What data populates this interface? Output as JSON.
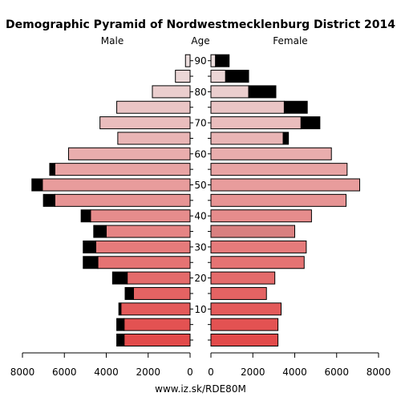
{
  "chart_data": {
    "type": "bar",
    "title": "Demographic Pyramid of Nordwestmecklenburg District 2014",
    "male_label": "Male",
    "age_label": "Age",
    "female_label": "Female",
    "footer": "www.iz.sk/RDE80M",
    "x_ticks": [
      8000,
      6000,
      4000,
      2000,
      0
    ],
    "x_ticks_female": [
      0,
      2000,
      4000,
      6000,
      8000
    ],
    "xlim": [
      0,
      8000
    ],
    "age_ticks": [
      10,
      20,
      30,
      40,
      50,
      60,
      70,
      80,
      90
    ],
    "age_groups": [
      "0-4",
      "5-9",
      "10-14",
      "15-19",
      "20-24",
      "25-29",
      "30-34",
      "35-39",
      "40-44",
      "45-49",
      "50-54",
      "55-59",
      "60-64",
      "65-69",
      "70-74",
      "75-79",
      "80-84",
      "85-89",
      "90+"
    ],
    "series": [
      {
        "name": "Male",
        "values": [
          3150,
          3150,
          3300,
          2700,
          3000,
          4400,
          4500,
          4000,
          4750,
          6450,
          7050,
          6450,
          5800,
          3450,
          4300,
          3500,
          1800,
          700,
          220
        ],
        "surplus": [
          350,
          350,
          100,
          400,
          700,
          700,
          600,
          600,
          450,
          550,
          500,
          250,
          0,
          0,
          0,
          0,
          0,
          0,
          0
        ]
      },
      {
        "name": "Female",
        "values": [
          3200,
          3200,
          3350,
          2650,
          3050,
          4450,
          4550,
          4000,
          4800,
          6450,
          7100,
          6500,
          5750,
          3450,
          4300,
          3500,
          1800,
          700,
          220
        ],
        "surplus": [
          0,
          0,
          0,
          0,
          0,
          0,
          0,
          0,
          0,
          0,
          0,
          0,
          0,
          250,
          900,
          1100,
          1300,
          1100,
          650
        ]
      }
    ],
    "colors": {
      "surplus": "#000000",
      "low": "#e24a4a",
      "high": "#ecdede",
      "highlight_female_35_39": "#d98080"
    }
  }
}
